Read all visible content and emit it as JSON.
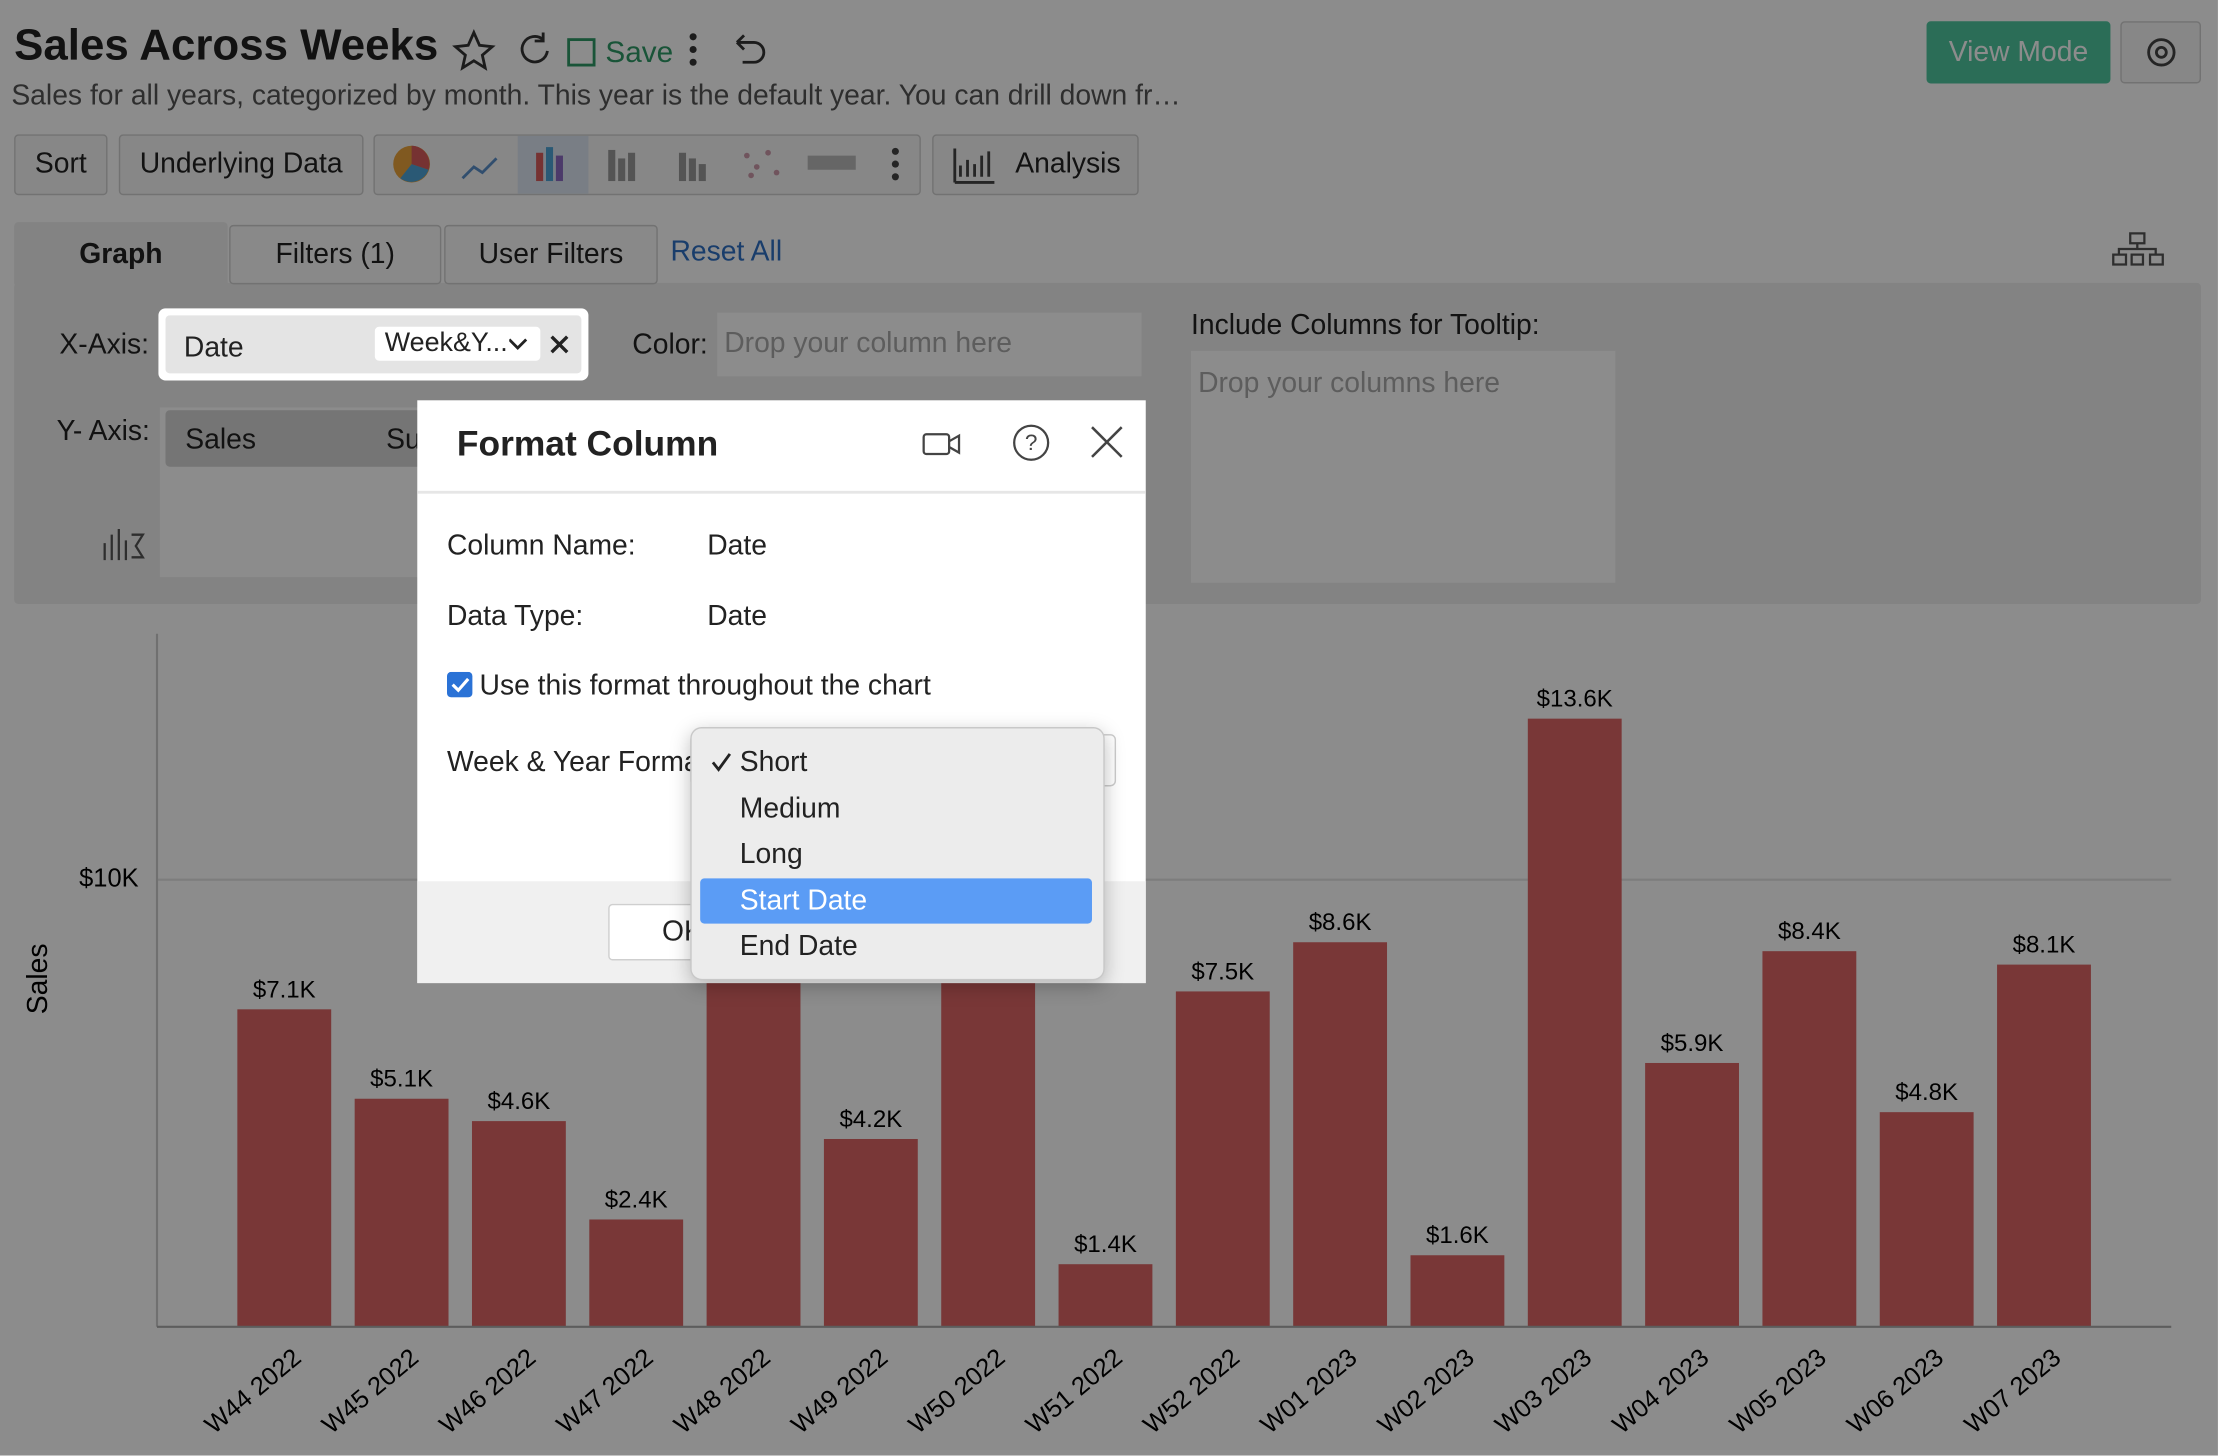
{
  "header": {
    "title": "Sales Across Weeks",
    "save": "Save",
    "view_mode": "View Mode",
    "description": "Sales for all years, categorized by month. This year is the default year. You can drill down fr…"
  },
  "toolbar": {
    "sort": "Sort",
    "underlying_data": "Underlying Data",
    "analysis": "Analysis"
  },
  "tabs": [
    "Graph",
    "Filters (1)",
    "User Filters"
  ],
  "reset_all": "Reset All",
  "shelf": {
    "x_axis_label": "X-Axis:",
    "x_column": "Date",
    "x_format": "Week&Y...",
    "color_label": "Color:",
    "color_placeholder": "Drop your column here",
    "y_axis_label": "Y- Axis:",
    "y_column": "Sales",
    "y_aggregate": "Sum",
    "tooltip_label": "Include Columns for Tooltip:",
    "tooltip_placeholder": "Drop your columns here"
  },
  "dialog": {
    "title": "Format Column",
    "column_name_label": "Column Name:",
    "column_name": "Date",
    "data_type_label": "Data Type:",
    "data_type": "Date",
    "checkbox": "Use this format throughout the chart",
    "format_label": "Week & Year Format",
    "options": [
      "Short",
      "Medium",
      "Long",
      "Start Date",
      "End Date"
    ],
    "checked_option": 0,
    "highlighted_option": 3,
    "ok": "OK"
  },
  "chart_data": {
    "type": "bar",
    "y_label": "Sales",
    "categories": [
      "W44 2022",
      "W45 2022",
      "W46 2022",
      "W47 2022",
      "W48 2022",
      "W49 2022",
      "W50 2022",
      "W51 2022",
      "W52 2022",
      "W01 2023",
      "W02 2023",
      "W03 2023",
      "W04 2023",
      "W05 2023",
      "W06 2023",
      "W07 2023"
    ],
    "values": [
      7100,
      5100,
      4600,
      2400,
      9000,
      4200,
      8900,
      1400,
      7500,
      8600,
      1600,
      13600,
      5900,
      8400,
      4800,
      8100
    ],
    "value_labels": [
      "$7.1K",
      "$5.1K",
      "$4.6K",
      "$2.4K",
      null,
      "$4.2K",
      null,
      "$1.4K",
      "$7.5K",
      "$8.6K",
      "$1.6K",
      "$13.6K",
      "$5.9K",
      "$8.4K",
      "$4.8K",
      "$8.1K"
    ],
    "color": "#dc6464",
    "ylim": [
      0,
      15500
    ],
    "yticks": [
      {
        "value": 10000,
        "label": "$10K"
      }
    ],
    "grid": true
  }
}
